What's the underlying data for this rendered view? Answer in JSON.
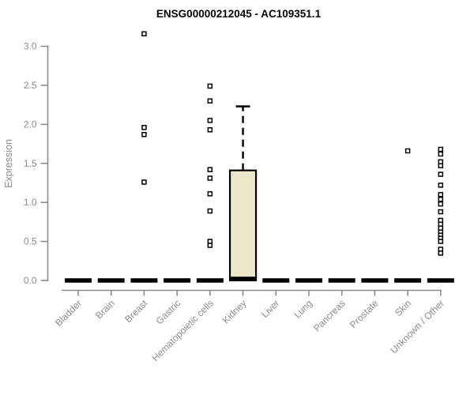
{
  "chart_data": {
    "type": "boxplot",
    "title": "ENSG00000212045 - AC109351.1",
    "ylabel": "Expression",
    "ylim": [
      0,
      3.0
    ],
    "yticks": [
      0.0,
      0.5,
      1.0,
      1.5,
      2.0,
      2.5,
      3.0
    ],
    "grid": false,
    "legend": "none",
    "colors": {
      "box_fill": "#ECE8CC",
      "box_stroke": "#000000",
      "axis": "#8c8c8c",
      "title": "#000000",
      "outlier_fill": "#ffffff"
    },
    "categories": [
      "Bladder",
      "Brain",
      "Breast",
      "Gastric",
      "Hematopoietic cells",
      "Kidney",
      "Liver",
      "Lung",
      "Pancreas",
      "Prostate",
      "Skin",
      "Unknown / Other"
    ],
    "boxes": [
      {
        "category": "Bladder",
        "q1": 0,
        "median": 0,
        "q3": 0,
        "whisker_low": 0,
        "whisker_high": 0,
        "outliers": []
      },
      {
        "category": "Brain",
        "q1": 0,
        "median": 0,
        "q3": 0,
        "whisker_low": 0,
        "whisker_high": 0,
        "outliers": []
      },
      {
        "category": "Breast",
        "q1": 0,
        "median": 0,
        "q3": 0,
        "whisker_low": 0,
        "whisker_high": 0,
        "outliers": [
          3.16,
          1.96,
          1.87,
          1.26
        ]
      },
      {
        "category": "Gastric",
        "q1": 0,
        "median": 0,
        "q3": 0,
        "whisker_low": 0,
        "whisker_high": 0,
        "outliers": []
      },
      {
        "category": "Hematopoietic cells",
        "q1": 0,
        "median": 0,
        "q3": 0,
        "whisker_low": 0,
        "whisker_high": 0,
        "outliers": [
          2.49,
          2.3,
          2.05,
          1.93,
          1.42,
          1.31,
          1.11,
          0.89,
          0.5,
          0.45
        ]
      },
      {
        "category": "Kidney",
        "q1": 0,
        "median": 0.02,
        "q3": 1.41,
        "whisker_low": 0,
        "whisker_high": 2.23,
        "outliers": []
      },
      {
        "category": "Liver",
        "q1": 0,
        "median": 0,
        "q3": 0,
        "whisker_low": 0,
        "whisker_high": 0,
        "outliers": []
      },
      {
        "category": "Lung",
        "q1": 0,
        "median": 0,
        "q3": 0,
        "whisker_low": 0,
        "whisker_high": 0,
        "outliers": []
      },
      {
        "category": "Pancreas",
        "q1": 0,
        "median": 0,
        "q3": 0,
        "whisker_low": 0,
        "whisker_high": 0,
        "outliers": []
      },
      {
        "category": "Prostate",
        "q1": 0,
        "median": 0,
        "q3": 0,
        "whisker_low": 0,
        "whisker_high": 0,
        "outliers": []
      },
      {
        "category": "Skin",
        "q1": 0,
        "median": 0,
        "q3": 0,
        "whisker_low": 0,
        "whisker_high": 0,
        "outliers": [
          1.66
        ]
      },
      {
        "category": "Unknown / Other",
        "q1": 0,
        "median": 0,
        "q3": 0,
        "whisker_low": 0,
        "whisker_high": 0,
        "outliers": [
          1.68,
          1.62,
          1.52,
          1.47,
          1.36,
          1.22,
          1.1,
          1.04,
          0.98,
          0.88,
          0.77,
          0.72,
          0.67,
          0.62,
          0.58,
          0.54,
          0.5,
          0.4,
          0.35
        ]
      }
    ]
  }
}
